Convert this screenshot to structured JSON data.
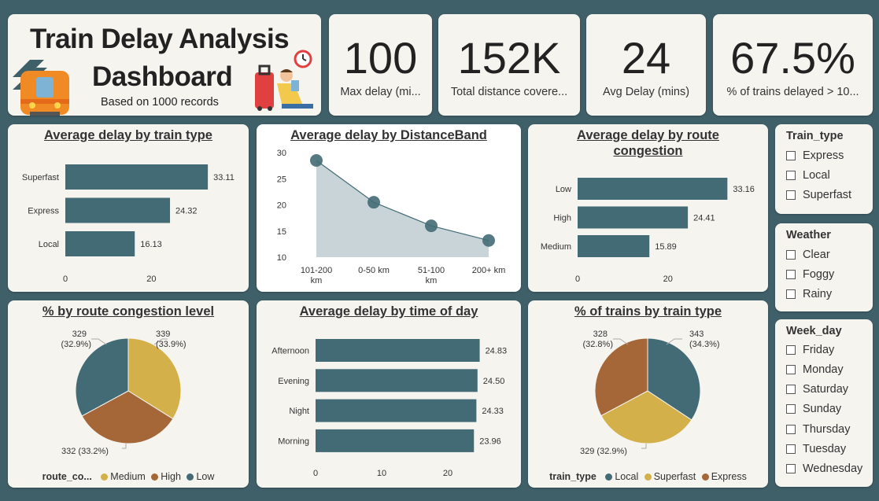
{
  "header": {
    "title_line1": "Train Delay Analysis",
    "title_line2": "Dashboard",
    "subtitle": "Based on 1000 records"
  },
  "kpis": [
    {
      "value": "100",
      "label": "Max delay (mi..."
    },
    {
      "value": "152K",
      "label": "Total distance covere..."
    },
    {
      "value": "24",
      "label": "Avg Delay (mins)"
    },
    {
      "value": "67.5%",
      "label": "% of trains delayed > 10..."
    }
  ],
  "colors": {
    "teal": "#436b75",
    "gold": "#d4b04a",
    "brown": "#a56638",
    "area": "#c8d4d8",
    "background": "#3f5f69"
  },
  "chart_data": [
    {
      "type": "bar",
      "title": "Average delay by train type",
      "categories": [
        "Superfast",
        "Express",
        "Local"
      ],
      "values": [
        33.11,
        24.32,
        16.13
      ],
      "data_labels": [
        "33.11",
        "24.32",
        "16.13"
      ],
      "xticks": [
        "0",
        "20"
      ]
    },
    {
      "type": "area",
      "title": "Average delay by DistanceBand",
      "categories": [
        "101-200 km",
        "0-50 km",
        "51-100 km",
        "200+ km"
      ],
      "values": [
        28.5,
        20.5,
        16,
        13.2
      ],
      "ylim": [
        10,
        30
      ],
      "yticks": [
        "30",
        "25",
        "20",
        "15",
        "10"
      ]
    },
    {
      "type": "bar",
      "title": "Average delay by route congestion",
      "categories": [
        "Low",
        "High",
        "Medium"
      ],
      "values": [
        33.16,
        24.41,
        15.89
      ],
      "data_labels": [
        "33.16",
        "24.41",
        "15.89"
      ],
      "xticks": [
        "0",
        "20"
      ]
    },
    {
      "type": "pie",
      "title": "% by route congestion level",
      "legend_title": "route_co...",
      "slices": [
        {
          "name": "Medium",
          "value": 339,
          "label": "339",
          "pct": "(33.9%)"
        },
        {
          "name": "High",
          "value": 332,
          "label": "332 (33.2%)"
        },
        {
          "name": "Low",
          "value": 329,
          "label": "329",
          "pct": "(32.9%)"
        }
      ]
    },
    {
      "type": "bar",
      "title": "Average delay by time of day",
      "categories": [
        "Afternoon",
        "Evening",
        "Night",
        "Morning"
      ],
      "values": [
        24.83,
        24.5,
        24.33,
        23.96
      ],
      "data_labels": [
        "24.83",
        "24.50",
        "24.33",
        "23.96"
      ],
      "xticks": [
        "0",
        "10",
        "20"
      ]
    },
    {
      "type": "pie",
      "title": "% of trains by train type",
      "legend_title": "train_type",
      "slices": [
        {
          "name": "Local",
          "value": 343,
          "label": "343",
          "pct": "(34.3%)"
        },
        {
          "name": "Superfast",
          "value": 329,
          "label": "329 (32.9%)"
        },
        {
          "name": "Express",
          "value": 328,
          "label": "328",
          "pct": "(32.8%)"
        }
      ]
    }
  ],
  "slicers": [
    {
      "title": "Train_type",
      "items": [
        "Express",
        "Local",
        "Superfast"
      ]
    },
    {
      "title": "Weather",
      "items": [
        "Clear",
        "Foggy",
        "Rainy"
      ]
    },
    {
      "title": "Week_day",
      "items": [
        "Friday",
        "Monday",
        "Saturday",
        "Sunday",
        "Thursday",
        "Tuesday",
        "Wednesday"
      ]
    }
  ]
}
